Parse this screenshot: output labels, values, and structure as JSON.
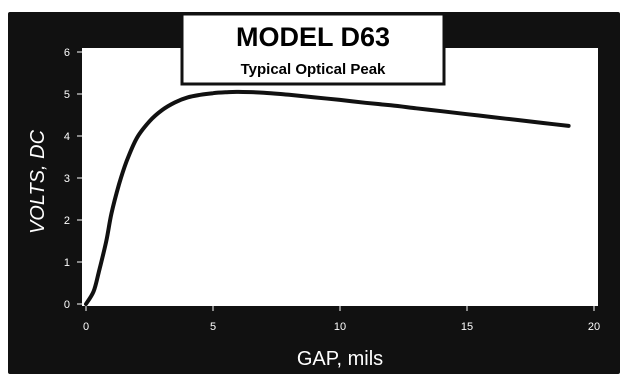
{
  "chart_data": {
    "type": "line",
    "title": "MODEL D63",
    "subtitle": "Typical Optical Peak",
    "xlabel": "GAP, mils",
    "ylabel": "VOLTS, DC",
    "xlim": [
      0,
      20
    ],
    "ylim": [
      0,
      6
    ],
    "x_ticks": [
      0,
      5,
      10,
      15,
      20
    ],
    "x_tick_labels": [
      "0",
      "5",
      "10",
      "15",
      "20"
    ],
    "y_ticks": [
      0,
      1,
      2,
      3,
      4,
      5,
      6
    ],
    "y_tick_labels": [
      "0",
      "1",
      "2",
      "3",
      "4",
      "5",
      "6"
    ],
    "grid": false,
    "legend": "none",
    "series": [
      {
        "x": [
          0,
          0.3,
          0.5,
          0.8,
          1.0,
          1.3,
          1.6,
          2.0,
          2.5,
          3.0,
          3.5,
          4.0,
          4.5,
          5.0,
          5.5,
          6.0,
          7.0,
          8.0,
          9.0,
          10.0,
          11.0,
          12.0,
          13.0,
          14.0,
          15.0,
          16.0,
          17.0,
          18.0,
          19.0
        ],
        "y": [
          0.0,
          0.3,
          0.75,
          1.5,
          2.15,
          2.85,
          3.4,
          3.95,
          4.35,
          4.62,
          4.8,
          4.92,
          4.98,
          5.02,
          5.04,
          5.05,
          5.03,
          4.98,
          4.92,
          4.86,
          4.79,
          4.73,
          4.66,
          4.59,
          4.52,
          4.45,
          4.38,
          4.31,
          4.24
        ]
      }
    ],
    "colors": {
      "background": "#111111",
      "plot_area": "#ffffff",
      "line": "#111111",
      "text_on_dark": "#ffffff",
      "title_box": "#ffffff",
      "title_text": "#000000"
    }
  }
}
